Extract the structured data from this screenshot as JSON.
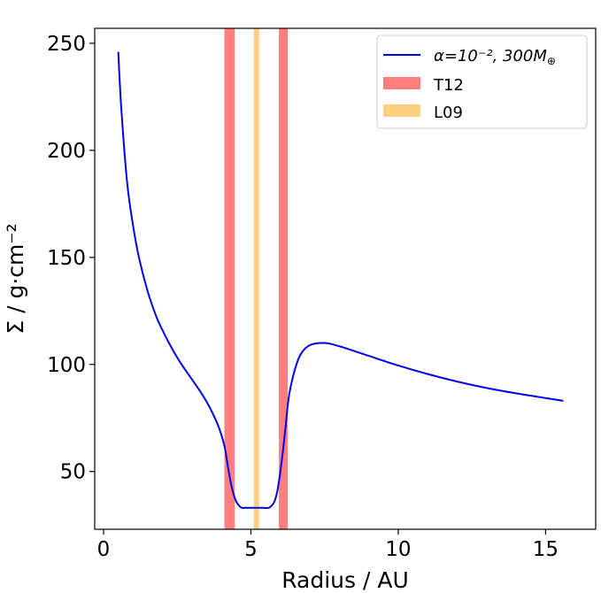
{
  "chart_data": {
    "type": "line",
    "title": "",
    "xlabel": "Radius / AU",
    "ylabel": "Σ / g·cm⁻²",
    "xlim": [
      -0.3,
      16.7
    ],
    "ylim": [
      23,
      257
    ],
    "xticks": [
      0,
      5,
      10,
      15
    ],
    "yticks": [
      50,
      100,
      150,
      200,
      250
    ],
    "grid": false,
    "legend_position": "top-right",
    "series": [
      {
        "name_prefix": "α=10⁻², 300M",
        "name_subscript": "⊕",
        "color": "#0000ee",
        "x": [
          0.5,
          0.6,
          0.8,
          1.0,
          1.2,
          1.5,
          1.8,
          2.0,
          2.3,
          2.6,
          3.0,
          3.3,
          3.6,
          3.9,
          4.1,
          4.2,
          4.3,
          4.4,
          4.5,
          4.6,
          4.7,
          4.8,
          5.0,
          5.2,
          5.4,
          5.6,
          5.7,
          5.8,
          5.9,
          6.0,
          6.1,
          6.2,
          6.3,
          6.5,
          6.7,
          7.0,
          7.5,
          8.0,
          9.0,
          10.0,
          11.0,
          12.0,
          13.0,
          14.0,
          15.0,
          15.6
        ],
        "y": [
          246,
          220,
          185,
          165,
          150,
          134,
          122,
          116,
          108,
          101,
          93,
          87,
          80,
          71,
          62,
          54,
          46,
          40,
          36,
          34,
          33,
          33,
          33,
          33,
          33,
          33,
          34,
          36,
          41,
          50,
          61,
          74,
          86,
          98,
          105,
          109,
          110,
          108.5,
          104,
          99.5,
          95.5,
          92,
          89,
          86.5,
          84.3,
          83
        ]
      }
    ],
    "bands": [
      {
        "label": "T12",
        "color": "#ff7f7f",
        "ranges": [
          [
            4.1,
            4.45
          ],
          [
            5.95,
            6.25
          ]
        ]
      },
      {
        "label": "L09",
        "color": "#ffd080",
        "ranges": [
          [
            5.1,
            5.28
          ]
        ]
      }
    ]
  }
}
